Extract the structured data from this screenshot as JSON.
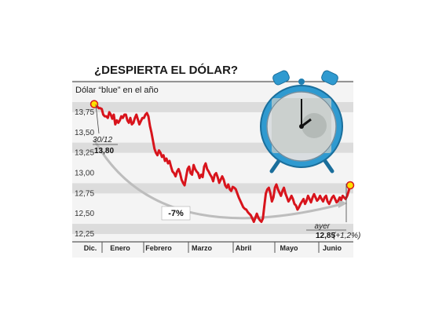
{
  "title": "¿DESPIERTA EL DÓLAR?",
  "chart_data": {
    "type": "line",
    "subtitle": "Dólar “blue” en el año",
    "x_labels": [
      "Dic.",
      "Enero",
      "Febrero",
      "Marzo",
      "Abril",
      "Mayo",
      "Junio"
    ],
    "y_ticks": [
      "13,75",
      "13,50",
      "13,25",
      "13,00",
      "12,75",
      "12,50",
      "12,25"
    ],
    "ylim": [
      12.25,
      13.9
    ],
    "grid": "alternating horizontal bands",
    "series": [
      {
        "color": "#d8141c",
        "values": [
          13.85,
          13.84,
          13.82,
          13.8,
          13.8,
          13.79,
          13.72,
          13.7,
          13.7,
          13.68,
          13.75,
          13.72,
          13.67,
          13.72,
          13.6,
          13.65,
          13.62,
          13.65,
          13.7,
          13.68,
          13.72,
          13.72,
          13.65,
          13.62,
          13.68,
          13.6,
          13.62,
          13.68,
          13.72,
          13.66,
          13.6,
          13.64,
          13.68,
          13.68,
          13.72,
          13.74,
          13.7,
          13.58,
          13.5,
          13.4,
          13.3,
          13.25,
          13.22,
          13.28,
          13.25,
          13.2,
          13.22,
          13.15,
          13.18,
          13.12,
          13.15,
          13.08,
          13.02,
          13.0,
          12.96,
          13.02,
          13.05,
          13.0,
          12.92,
          12.88,
          12.85,
          12.95,
          13.05,
          13.08,
          13.0,
          12.98,
          13.1,
          13.05,
          13.02,
          13.0,
          12.94,
          12.98,
          12.95,
          13.08,
          13.12,
          13.05,
          13.02,
          12.98,
          12.95,
          12.9,
          12.98,
          13.0,
          12.95,
          12.88,
          12.92,
          12.96,
          12.92,
          12.85,
          12.82,
          12.86,
          12.8,
          12.78,
          12.83,
          12.82,
          12.8,
          12.75,
          12.7,
          12.66,
          12.62,
          12.58,
          12.56,
          12.55,
          12.52,
          12.5,
          12.48,
          12.44,
          12.4,
          12.45,
          12.5,
          12.45,
          12.42,
          12.4,
          12.44,
          12.6,
          12.75,
          12.8,
          12.82,
          12.75,
          12.65,
          12.7,
          12.82,
          12.86,
          12.8,
          12.76,
          12.72,
          12.78,
          12.82,
          12.75,
          12.7,
          12.65,
          12.68,
          12.72,
          12.68,
          12.62,
          12.6,
          12.55,
          12.58,
          12.62,
          12.65,
          12.68,
          12.62,
          12.66,
          12.72,
          12.68,
          12.64,
          12.7,
          12.74,
          12.7,
          12.66,
          12.68,
          12.72,
          12.68,
          12.65,
          12.7,
          12.72,
          12.65,
          12.62,
          12.66,
          12.7,
          12.72,
          12.68,
          12.64,
          12.66,
          12.7,
          12.67,
          12.72,
          12.7,
          12.68,
          12.72,
          12.78,
          12.85
        ]
      }
    ],
    "annotations": {
      "start_date": "30/12",
      "start_value": "13,80",
      "change": "-7%",
      "end_date": "ayer",
      "end_value": "12,85",
      "end_change": "(+1,2%)"
    }
  }
}
